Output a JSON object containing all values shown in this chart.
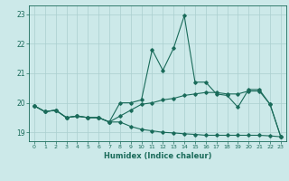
{
  "xlabel": "Humidex (Indice chaleur)",
  "background_color": "#cce9e9",
  "grid_color": "#aacfcf",
  "line_color": "#1a6b5a",
  "xlim": [
    -0.5,
    23.5
  ],
  "ylim": [
    18.7,
    23.3
  ],
  "yticks": [
    19,
    20,
    21,
    22,
    23
  ],
  "xticks": [
    0,
    1,
    2,
    3,
    4,
    5,
    6,
    7,
    8,
    9,
    10,
    11,
    12,
    13,
    14,
    15,
    16,
    17,
    18,
    19,
    20,
    21,
    22,
    23
  ],
  "series1_x": [
    0,
    1,
    2,
    3,
    4,
    5,
    6,
    7,
    8,
    9,
    10,
    11,
    12,
    13,
    14,
    15,
    16,
    17,
    18,
    19,
    20,
    21,
    22,
    23
  ],
  "series1_y": [
    19.9,
    19.7,
    19.75,
    19.5,
    19.55,
    19.5,
    19.5,
    19.35,
    20.0,
    20.0,
    20.1,
    21.8,
    21.1,
    21.85,
    22.95,
    20.7,
    20.7,
    20.3,
    20.25,
    19.85,
    20.45,
    20.45,
    19.95,
    18.85
  ],
  "series2_x": [
    0,
    1,
    2,
    3,
    4,
    5,
    6,
    7,
    8,
    9,
    10,
    11,
    12,
    13,
    14,
    15,
    16,
    17,
    18,
    19,
    20,
    21,
    22,
    23
  ],
  "series2_y": [
    19.9,
    19.7,
    19.75,
    19.5,
    19.55,
    19.5,
    19.5,
    19.35,
    19.55,
    19.75,
    19.95,
    20.0,
    20.1,
    20.15,
    20.25,
    20.3,
    20.35,
    20.35,
    20.3,
    20.3,
    20.4,
    20.4,
    19.95,
    18.85
  ],
  "series3_x": [
    0,
    1,
    2,
    3,
    4,
    5,
    6,
    7,
    8,
    9,
    10,
    11,
    12,
    13,
    14,
    15,
    16,
    17,
    18,
    19,
    20,
    21,
    22,
    23
  ],
  "series3_y": [
    19.9,
    19.7,
    19.75,
    19.5,
    19.55,
    19.5,
    19.5,
    19.35,
    19.35,
    19.2,
    19.1,
    19.05,
    19.0,
    18.98,
    18.95,
    18.93,
    18.9,
    18.9,
    18.9,
    18.9,
    18.9,
    18.9,
    18.88,
    18.85
  ]
}
